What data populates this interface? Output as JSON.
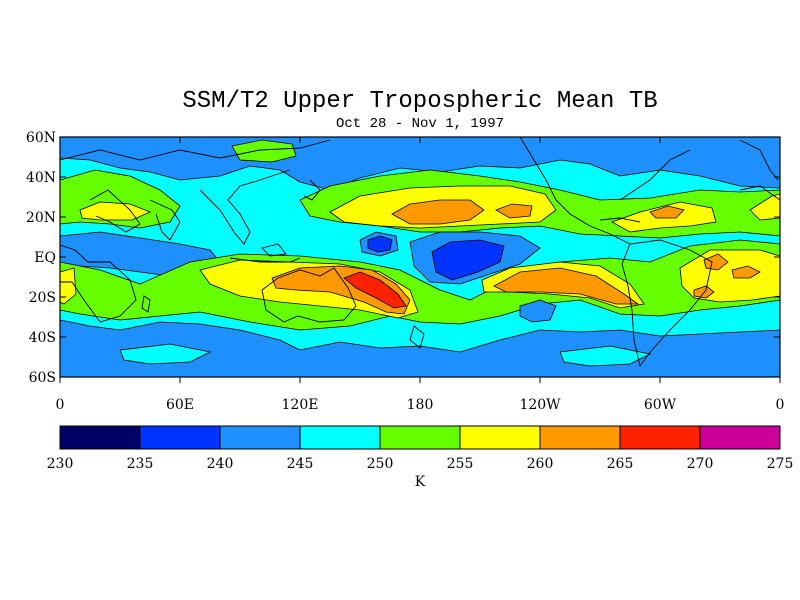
{
  "title": "SSM/T2 Upper Tropospheric Mean TB",
  "subtitle": "Oct 28 - Nov 1, 1997",
  "lat_labels": [
    "60N",
    "40N",
    "20N",
    "EQ",
    "20S",
    "40S",
    "60S"
  ],
  "lon_labels": [
    "0",
    "60E",
    "120E",
    "180",
    "120W",
    "60W",
    "0"
  ],
  "colorbar": {
    "unit": "K",
    "ticks": [
      "230",
      "235",
      "240",
      "245",
      "250",
      "255",
      "260",
      "265",
      "270",
      "275"
    ],
    "colors": [
      "#000066",
      "#0033ff",
      "#1e90ff",
      "#00ffff",
      "#66ff00",
      "#ffff00",
      "#ff9900",
      "#ff2200",
      "#cc0099"
    ]
  }
}
